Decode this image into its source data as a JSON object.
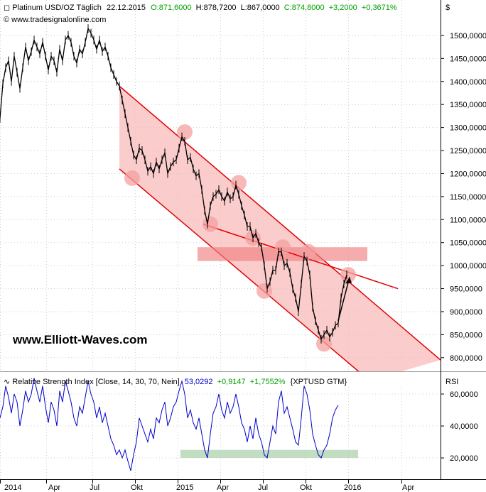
{
  "header": {
    "instrument": "Platinum USD/OZ Täglich",
    "date": "22.12.2015",
    "open": "O:871,6000",
    "high": "H:878,7200",
    "low": "L:867,0000",
    "close": "C:874,8000",
    "change": "+3,2000",
    "change_pct": "+0,3671%",
    "source": "© www.tradesignalonline.com",
    "currency": "$"
  },
  "watermark": "www.Elliott-Waves.com",
  "rsi_header": {
    "label": "Relative Strength Index [Close, 14, 30, 70, Nein]",
    "value": "53,0292",
    "change": "+0,9147",
    "change_pct": "+1,7552%",
    "ticker": "{XPTUSD GTM}",
    "axis_name": "RSI"
  },
  "colors": {
    "up": "#00a000",
    "price_line": "#000000",
    "rsi_line": "#0000cc",
    "channel_line": "#e00000",
    "channel_fill": "#f9b7b7",
    "support_zone": "#b3d5b3",
    "resistance_zone": "#f08080"
  },
  "chart_data": [
    {
      "type": "line",
      "series": [
        {
          "values": [
            [
              0,
              1320
            ],
            [
              4,
              1395
            ],
            [
              8,
              1430
            ],
            [
              12,
              1445
            ],
            [
              16,
              1400
            ],
            [
              20,
              1455
            ],
            [
              24,
              1420
            ],
            [
              28,
              1385
            ],
            [
              32,
              1430
            ],
            [
              36,
              1475
            ],
            [
              40,
              1445
            ],
            [
              44,
              1465
            ],
            [
              48,
              1490
            ],
            [
              52,
              1475
            ],
            [
              56,
              1460
            ],
            [
              60,
              1485
            ],
            [
              64,
              1455
            ],
            [
              68,
              1425
            ],
            [
              72,
              1455
            ],
            [
              76,
              1445
            ],
            [
              80,
              1420
            ],
            [
              84,
              1470
            ],
            [
              88,
              1445
            ],
            [
              92,
              1490
            ],
            [
              96,
              1500
            ],
            [
              100,
              1485
            ],
            [
              104,
              1455
            ],
            [
              108,
              1440
            ],
            [
              112,
              1470
            ],
            [
              116,
              1460
            ],
            [
              120,
              1485
            ],
            [
              124,
              1515
            ],
            [
              128,
              1505
            ],
            [
              132,
              1490
            ],
            [
              136,
              1470
            ],
            [
              140,
              1490
            ],
            [
              144,
              1465
            ],
            [
              148,
              1475
            ],
            [
              152,
              1455
            ],
            [
              156,
              1430
            ],
            [
              160,
              1415
            ],
            [
              164,
              1400
            ],
            [
              168,
              1390
            ],
            [
              172,
              1360
            ],
            [
              176,
              1330
            ],
            [
              180,
              1300
            ],
            [
              184,
              1270
            ],
            [
              188,
              1240
            ],
            [
              192,
              1230
            ],
            [
              196,
              1255
            ],
            [
              200,
              1250
            ],
            [
              204,
              1230
            ],
            [
              208,
              1205
            ],
            [
              212,
              1215
            ],
            [
              216,
              1200
            ],
            [
              220,
              1225
            ],
            [
              224,
              1210
            ],
            [
              228,
              1230
            ],
            [
              232,
              1245
            ],
            [
              236,
              1200
            ],
            [
              240,
              1215
            ],
            [
              244,
              1225
            ],
            [
              248,
              1230
            ],
            [
              252,
              1255
            ],
            [
              256,
              1280
            ],
            [
              260,
              1270
            ],
            [
              264,
              1230
            ],
            [
              268,
              1235
            ],
            [
              272,
              1210
            ],
            [
              276,
              1195
            ],
            [
              280,
              1200
            ],
            [
              284,
              1165
            ],
            [
              288,
              1120
            ],
            [
              292,
              1090
            ],
            [
              296,
              1130
            ],
            [
              300,
              1150
            ],
            [
              304,
              1155
            ],
            [
              308,
              1165
            ],
            [
              312,
              1150
            ],
            [
              316,
              1140
            ],
            [
              320,
              1160
            ],
            [
              324,
              1145
            ],
            [
              328,
              1150
            ],
            [
              332,
              1175
            ],
            [
              336,
              1155
            ],
            [
              340,
              1130
            ],
            [
              344,
              1110
            ],
            [
              348,
              1085
            ],
            [
              352,
              1085
            ],
            [
              356,
              1060
            ],
            [
              360,
              1070
            ],
            [
              364,
              1050
            ],
            [
              368,
              1040
            ],
            [
              372,
              1000
            ],
            [
              376,
              950
            ],
            [
              380,
              965
            ],
            [
              384,
              990
            ],
            [
              388,
              990
            ],
            [
              392,
              1030
            ],
            [
              396,
              1030
            ],
            [
              400,
              1000
            ],
            [
              404,
              1005
            ],
            [
              408,
              985
            ],
            [
              412,
              950
            ],
            [
              416,
              930
            ],
            [
              420,
              900
            ],
            [
              424,
              960
            ],
            [
              428,
              1020
            ],
            [
              432,
              1010
            ],
            [
              436,
              980
            ],
            [
              440,
              910
            ],
            [
              444,
              880
            ],
            [
              448,
              860
            ],
            [
              452,
              840
            ],
            [
              456,
              850
            ],
            [
              460,
              860
            ],
            [
              464,
              845
            ],
            [
              468,
              855
            ],
            [
              472,
              870
            ],
            [
              476,
              875
            ],
            [
              480,
              930
            ],
            [
              484,
              960
            ],
            [
              488,
              980
            ]
          ]
        }
      ],
      "xlim": [
        0,
        620
      ],
      "x_tick_labels": [
        "2014",
        "Apr",
        "Jul",
        "Okt",
        "2015",
        "Apr",
        "Jul",
        "Okt",
        "2016",
        "Apr"
      ],
      "y_tick_labels": [
        "1500,0000",
        "1450,0000",
        "1400,0000",
        "1350,0000",
        "1300,0000",
        "1250,0000",
        "1200,0000",
        "1150,0000",
        "1100,0000",
        "1050,0000",
        "1000,0000",
        "950,0000",
        "900,0000",
        "850,0000",
        "800,0000"
      ],
      "ylim": [
        775,
        1540
      ],
      "grid": true,
      "annotations": {
        "channel_upper": [
          [
            168,
            1390
          ],
          [
            620,
            795
          ]
        ],
        "channel_lower": [
          [
            168,
            1210
          ],
          [
            520,
            750
          ]
        ],
        "trendline": [
          [
            286,
            1090
          ],
          [
            560,
            950
          ]
        ],
        "resistance_zone": {
          "x": [
            278,
            517
          ],
          "y": [
            1010,
            1040
          ]
        },
        "arrow": [
          [
            476,
            880
          ],
          [
            492,
            975
          ]
        ],
        "touch_points": [
          [
            186,
            1190
          ],
          [
            260,
            1290
          ],
          [
            296,
            1090
          ],
          [
            336,
            1180
          ],
          [
            356,
            1060
          ],
          [
            372,
            945
          ],
          [
            398,
            1040
          ],
          [
            434,
            1030
          ],
          [
            456,
            830
          ],
          [
            490,
            980
          ]
        ]
      }
    },
    {
      "type": "line",
      "series": [
        {
          "values": [
            [
              0,
              45
            ],
            [
              4,
              52
            ],
            [
              8,
              65
            ],
            [
              12,
              58
            ],
            [
              16,
              48
            ],
            [
              20,
              60
            ],
            [
              24,
              55
            ],
            [
              28,
              40
            ],
            [
              32,
              50
            ],
            [
              36,
              62
            ],
            [
              40,
              55
            ],
            [
              44,
              60
            ],
            [
              48,
              70
            ],
            [
              52,
              62
            ],
            [
              56,
              55
            ],
            [
              60,
              65
            ],
            [
              64,
              52
            ],
            [
              68,
              42
            ],
            [
              72,
              55
            ],
            [
              76,
              50
            ],
            [
              80,
              40
            ],
            [
              84,
              62
            ],
            [
              88,
              55
            ],
            [
              92,
              68
            ],
            [
              96,
              62
            ],
            [
              100,
              55
            ],
            [
              104,
              45
            ],
            [
              108,
              40
            ],
            [
              112,
              52
            ],
            [
              116,
              48
            ],
            [
              120,
              58
            ],
            [
              124,
              68
            ],
            [
              128,
              60
            ],
            [
              132,
              55
            ],
            [
              136,
              45
            ],
            [
              140,
              52
            ],
            [
              144,
              42
            ],
            [
              148,
              48
            ],
            [
              152,
              40
            ],
            [
              156,
              32
            ],
            [
              160,
              28
            ],
            [
              164,
              22
            ],
            [
              168,
              25
            ],
            [
              172,
              20
            ],
            [
              176,
              25
            ],
            [
              180,
              18
            ],
            [
              184,
              12
            ],
            [
              188,
              22
            ],
            [
              192,
              30
            ],
            [
              196,
              45
            ],
            [
              200,
              40
            ],
            [
              204,
              35
            ],
            [
              208,
              30
            ],
            [
              212,
              38
            ],
            [
              216,
              32
            ],
            [
              220,
              45
            ],
            [
              224,
              42
            ],
            [
              228,
              50
            ],
            [
              232,
              55
            ],
            [
              236,
              40
            ],
            [
              240,
              45
            ],
            [
              244,
              52
            ],
            [
              248,
              55
            ],
            [
              252,
              62
            ],
            [
              256,
              68
            ],
            [
              260,
              60
            ],
            [
              264,
              45
            ],
            [
              268,
              50
            ],
            [
              272,
              42
            ],
            [
              276,
              38
            ],
            [
              280,
              45
            ],
            [
              284,
              35
            ],
            [
              288,
              25
            ],
            [
              292,
              20
            ],
            [
              296,
              35
            ],
            [
              300,
              48
            ],
            [
              304,
              52
            ],
            [
              308,
              60
            ],
            [
              312,
              50
            ],
            [
              316,
              45
            ],
            [
              320,
              55
            ],
            [
              324,
              48
            ],
            [
              328,
              52
            ],
            [
              332,
              60
            ],
            [
              336,
              52
            ],
            [
              340,
              42
            ],
            [
              344,
              38
            ],
            [
              348,
              30
            ],
            [
              352,
              40
            ],
            [
              356,
              32
            ],
            [
              360,
              45
            ],
            [
              364,
              35
            ],
            [
              368,
              30
            ],
            [
              372,
              22
            ],
            [
              376,
              20
            ],
            [
              380,
              30
            ],
            [
              384,
              40
            ],
            [
              388,
              35
            ],
            [
              392,
              55
            ],
            [
              396,
              62
            ],
            [
              400,
              48
            ],
            [
              404,
              52
            ],
            [
              408,
              45
            ],
            [
              412,
              38
            ],
            [
              416,
              30
            ],
            [
              420,
              28
            ],
            [
              424,
              45
            ],
            [
              428,
              65
            ],
            [
              432,
              60
            ],
            [
              436,
              50
            ],
            [
              440,
              35
            ],
            [
              444,
              28
            ],
            [
              448,
              22
            ],
            [
              452,
              20
            ],
            [
              456,
              25
            ],
            [
              460,
              28
            ],
            [
              464,
              35
            ],
            [
              468,
              45
            ],
            [
              472,
              50
            ],
            [
              476,
              53
            ]
          ]
        }
      ],
      "xlim": [
        0,
        620
      ],
      "y_tick_labels": [
        "60,0000",
        "40,0000",
        "20,0000"
      ],
      "ylim": [
        8,
        72
      ],
      "grid": true,
      "annotations": {
        "support_zone": {
          "x": [
            254,
            504
          ],
          "y": [
            20,
            25
          ]
        }
      }
    }
  ]
}
